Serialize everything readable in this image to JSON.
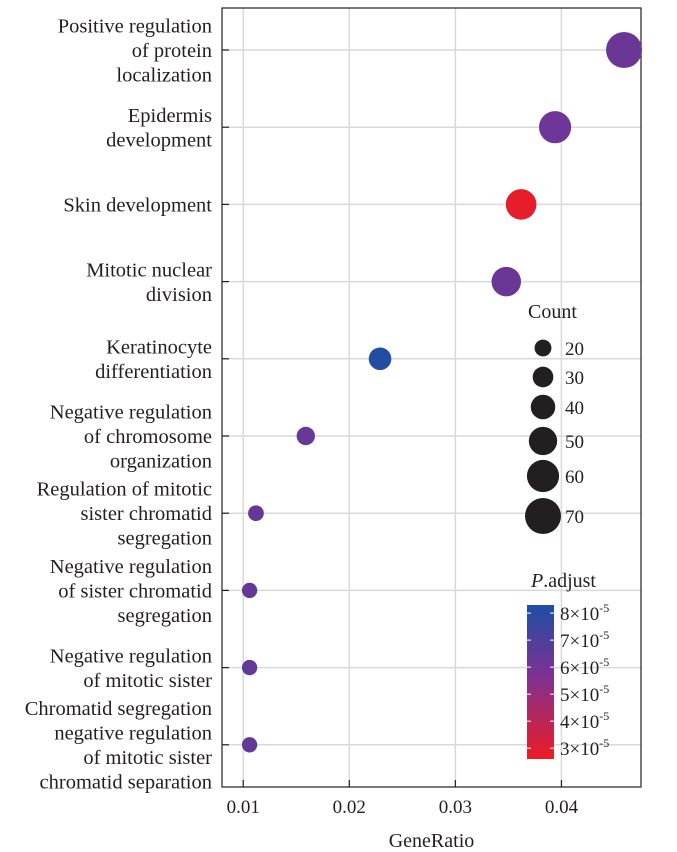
{
  "chart_data": {
    "type": "scatter",
    "subtype": "dot-plot",
    "xlabel": "GeneRatio",
    "xlim": [
      0.008,
      0.0475
    ],
    "xticks": [
      0.01,
      0.02,
      0.03,
      0.04
    ],
    "xtick_labels": [
      "0.01",
      "0.02",
      "0.03",
      "0.04"
    ],
    "grid": true,
    "categories": [
      {
        "lines": [
          "Positive regulation",
          "of protein",
          "localization"
        ],
        "gene_ratio": 0.0459,
        "count": 70,
        "p_adjust": 6.2e-05
      },
      {
        "lines": [
          "Epidermis",
          "development"
        ],
        "gene_ratio": 0.0394,
        "count": 60,
        "p_adjust": 6.1e-05
      },
      {
        "lines": [
          "Skin development"
        ],
        "gene_ratio": 0.0362,
        "count": 56,
        "p_adjust": 2.8e-05
      },
      {
        "lines": [
          "Mitotic nuclear",
          "division"
        ],
        "gene_ratio": 0.0348,
        "count": 53,
        "p_adjust": 6.2e-05
      },
      {
        "lines": [
          "Keratinocyte",
          "differentiation"
        ],
        "gene_ratio": 0.0229,
        "count": 35,
        "p_adjust": 8.2e-05
      },
      {
        "lines": [
          "Negative regulation",
          "of chromosome",
          "organization"
        ],
        "gene_ratio": 0.0159,
        "count": 24,
        "p_adjust": 6.3e-05
      },
      {
        "lines": [
          "Regulation of mitotic",
          "sister chromatid",
          "segregation"
        ],
        "gene_ratio": 0.0112,
        "count": 17,
        "p_adjust": 6.4e-05
      },
      {
        "lines": [
          "Negative regulation",
          "of sister chromatid",
          "segregation"
        ],
        "gene_ratio": 0.0106,
        "count": 16,
        "p_adjust": 6.4e-05
      },
      {
        "lines": [
          "Negative regulation",
          "of mitotic sister"
        ],
        "gene_ratio": 0.0106,
        "count": 16,
        "p_adjust": 6.4e-05
      },
      {
        "lines": [
          "Chromatid segregation",
          "negative regulation",
          "of mitotic sister",
          "chromatid separation"
        ],
        "gene_ratio": 0.0106,
        "count": 16,
        "p_adjust": 6.4e-05
      }
    ],
    "size_legend": {
      "title": "Count",
      "values": [
        20,
        30,
        40,
        50,
        60,
        70
      ],
      "labels": [
        "20",
        "30",
        "40",
        "50",
        "60",
        "70"
      ]
    },
    "color_legend": {
      "title_italic": "P",
      "title_rest": ".adjust",
      "low_color": "#ed1c24",
      "high_color": "#1f4ea3",
      "mid_color": "#7b3294",
      "range": [
        2.6e-05,
        8.3e-05
      ],
      "ticks": [
        {
          "value": 8e-05,
          "mantissa": "8",
          "times": "×10",
          "exponent": "-5"
        },
        {
          "value": 7e-05,
          "mantissa": "7",
          "times": "×10",
          "exponent": "-5"
        },
        {
          "value": 6e-05,
          "mantissa": "6",
          "times": "×10",
          "exponent": "-5"
        },
        {
          "value": 5e-05,
          "mantissa": "5",
          "times": "×10",
          "exponent": "-5"
        },
        {
          "value": 4e-05,
          "mantissa": "4",
          "times": "×10",
          "exponent": "-5"
        },
        {
          "value": 3e-05,
          "mantissa": "3",
          "times": "×10",
          "exponent": "-5"
        }
      ]
    }
  }
}
